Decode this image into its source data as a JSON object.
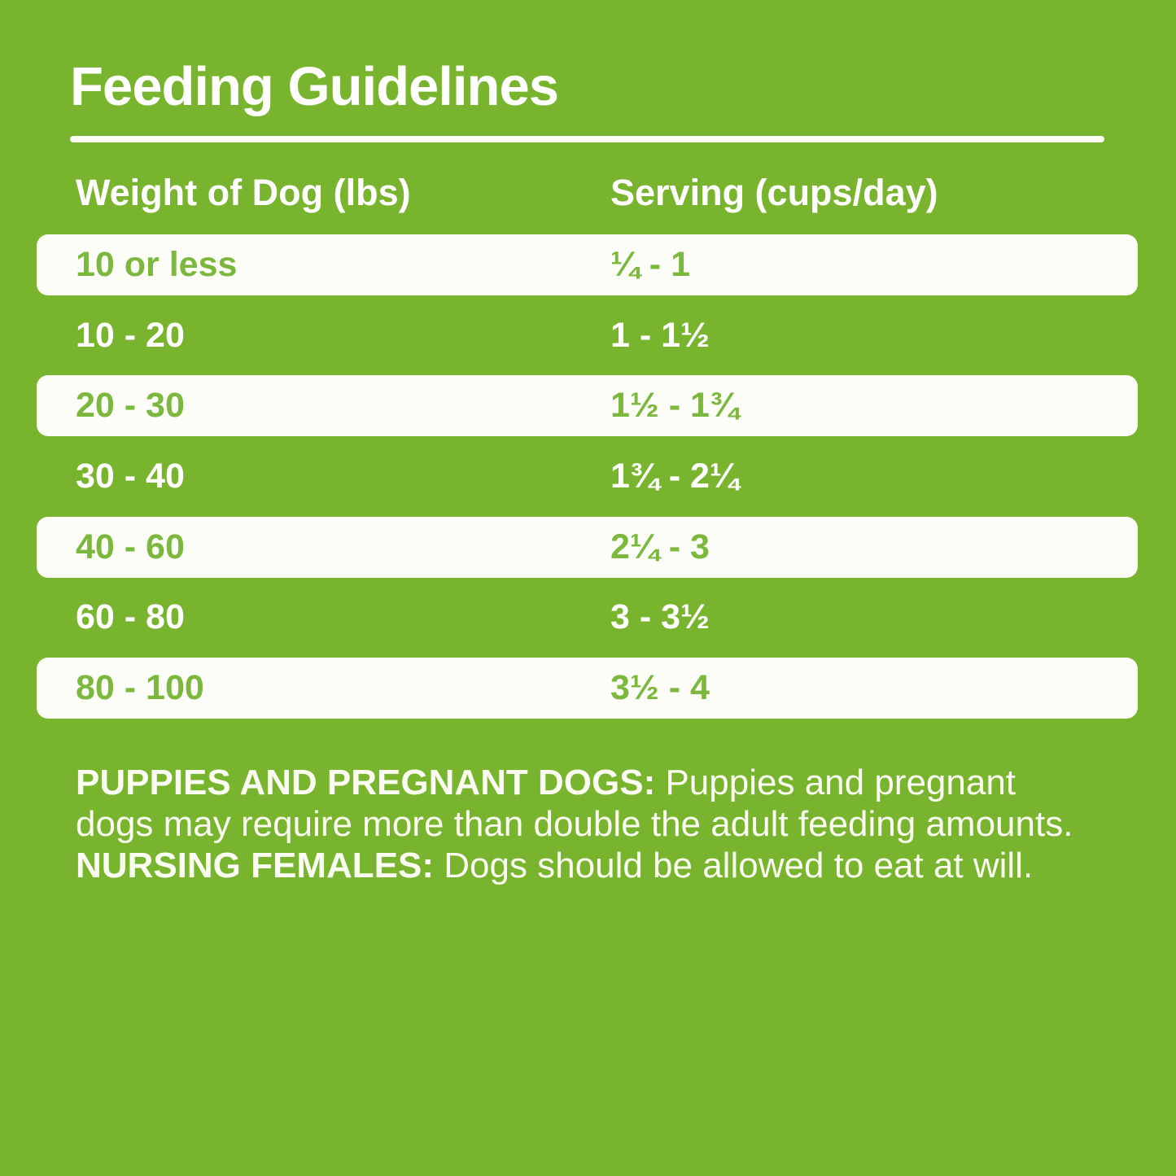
{
  "title": "Feeding Guidelines",
  "table": {
    "headers": {
      "weight": "Weight of Dog (lbs)",
      "serving": "Serving (cups/day)"
    },
    "rows": [
      {
        "weight": "10 or less",
        "serving": "¼ - 1",
        "highlighted": true
      },
      {
        "weight": "10 - 20",
        "serving": "1 - 1½",
        "highlighted": false
      },
      {
        "weight": "20 - 30",
        "serving": "1½ - 1¾",
        "highlighted": true
      },
      {
        "weight": "30 - 40",
        "serving": "1¾ - 2¼",
        "highlighted": false
      },
      {
        "weight": "40 - 60",
        "serving": "2¼ - 3",
        "highlighted": true
      },
      {
        "weight": "60 - 80",
        "serving": "3 - 3½",
        "highlighted": false
      },
      {
        "weight": "80 - 100",
        "serving": "3½ - 4",
        "highlighted": true
      }
    ]
  },
  "notes": {
    "segments": [
      {
        "text": "PUPPIES AND PREGNANT DOGS:",
        "bold": true
      },
      {
        "text": " Puppies and pregnant dogs may require more than double the adult feeding amounts. ",
        "bold": false
      },
      {
        "text": "NURSING FEMALES:",
        "bold": true
      },
      {
        "text": " Dogs should be allowed to eat at will.",
        "bold": false
      }
    ]
  },
  "colors": {
    "background": "#78b42d",
    "band": "#fdfdf8",
    "rule": "#fcfdf7",
    "text_on_background": "#ffffff",
    "text_on_band": "#7cb83d",
    "notes_text": "#fafcf2"
  }
}
